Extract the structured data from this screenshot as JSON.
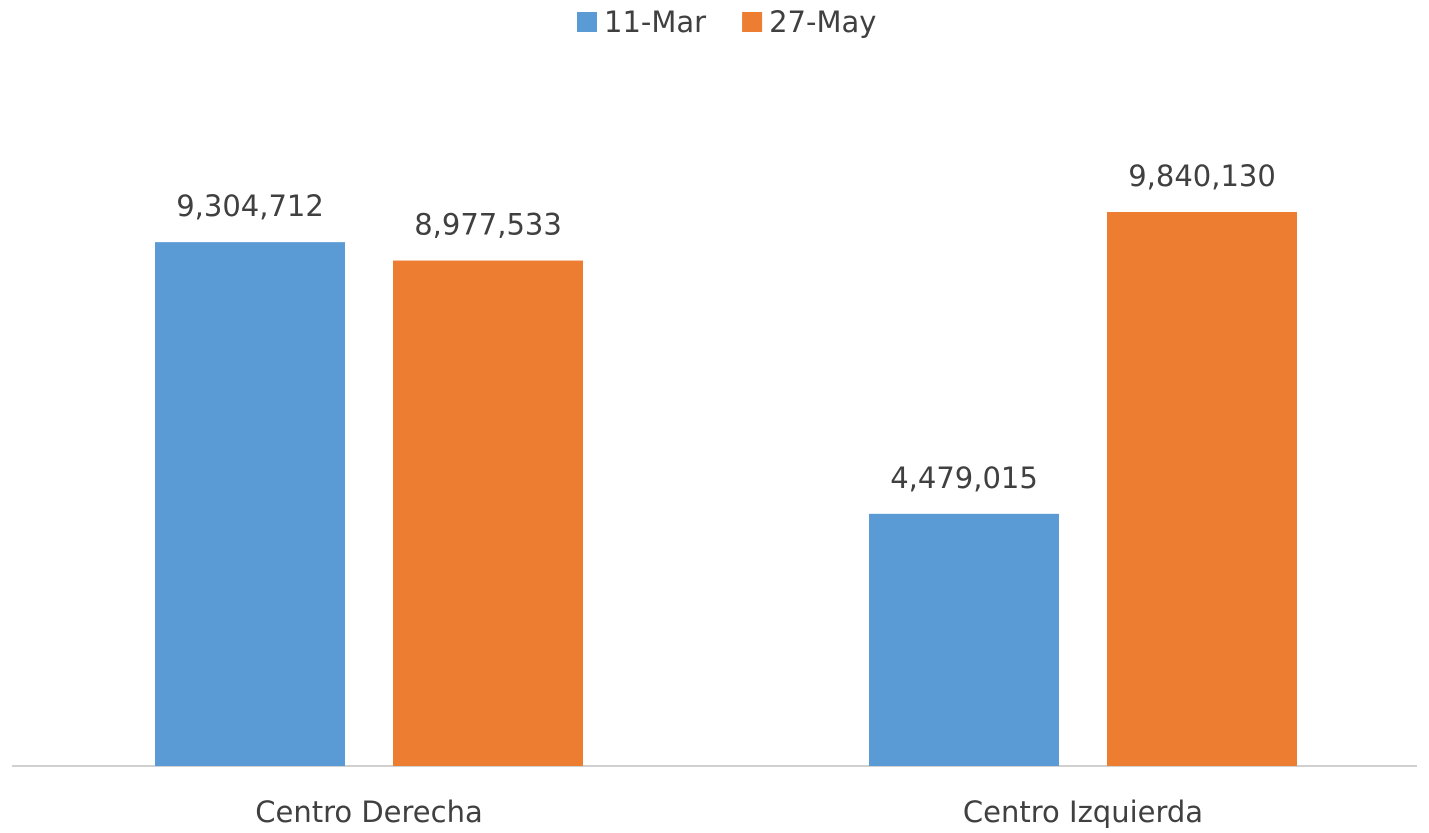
{
  "chart_data": {
    "type": "bar",
    "categories": [
      "Centro Derecha",
      "Centro Izquierda"
    ],
    "series": [
      {
        "name": "11-Mar",
        "color": "#5b9bd5",
        "values": [
          9304712,
          4479015
        ],
        "value_labels": [
          "9,304,712",
          "4,479,015"
        ]
      },
      {
        "name": "27-May",
        "color": "#ed7d31",
        "values": [
          8977533,
          9840130
        ],
        "value_labels": [
          "8,977,533",
          "9,840,130"
        ]
      }
    ],
    "legend": "top"
  }
}
